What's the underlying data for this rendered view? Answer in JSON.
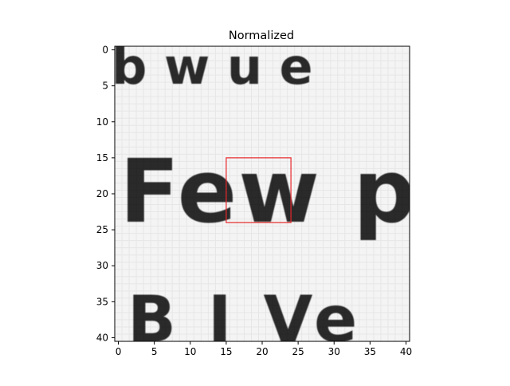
{
  "figure": {
    "title": "Normalized",
    "x_ticks": [
      "0",
      "5",
      "10",
      "15",
      "20",
      "25",
      "30",
      "35",
      "40"
    ],
    "y_ticks": [
      "0",
      "5",
      "10",
      "15",
      "20",
      "25",
      "30",
      "35",
      "40"
    ],
    "box_color": "#e8262a",
    "image_text": {
      "row_top": "b w u e",
      "row_middle": "Few pe",
      "row_bottom": "B I Ve"
    }
  }
}
